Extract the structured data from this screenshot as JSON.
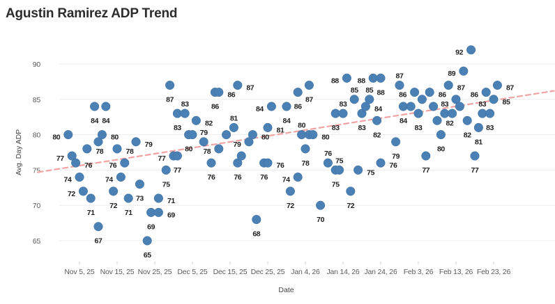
{
  "title": "Agustin Ramirez ADP Trend",
  "colors": {
    "dot": "#4b80b4",
    "dot_stroke": "#3d6f9f",
    "trend_line": "#f1a3a3",
    "grid": "#ededed",
    "tick_text": "#5b5b5b",
    "title_text": "#2c2c2c",
    "label_text": "#1e1e1e",
    "background": "#ffffff"
  },
  "chart_data": {
    "type": "scatter",
    "title": "Agustin Ramirez ADP Trend",
    "xlabel": "Date",
    "ylabel": "Avg. Day ADP",
    "grid": "horizontal",
    "legend_position": "none",
    "y_ticks": [
      65,
      70,
      75,
      80,
      85,
      90
    ],
    "ylim": [
      62.5,
      94
    ],
    "x_tick_labels": [
      "Nov 5, 25",
      "Nov 15, 25",
      "Nov 25, 25",
      "Dec 5, 25",
      "Dec 15, 25",
      "Dec 25, 25",
      "Jan 4, 26",
      "Jan 14, 26",
      "Jan 24, 26",
      "Feb 3, 26",
      "Feb 13, 26",
      "Feb 23, 26"
    ],
    "trend": {
      "style": "dashed",
      "start_date": "Oct 25",
      "start_adp": 74.7,
      "end_date": "Mar 11",
      "end_adp": 86.2
    },
    "points": [
      {
        "date": "Nov 2",
        "adp": 80
      },
      {
        "date": "Nov 3",
        "adp": 77
      },
      {
        "date": "Nov 4",
        "adp": 76
      },
      {
        "date": "Nov 5",
        "adp": 74
      },
      {
        "date": "Nov 6",
        "adp": 72
      },
      {
        "date": "Nov 7",
        "adp": 78
      },
      {
        "date": "Nov 8",
        "adp": 71
      },
      {
        "date": "Nov 9",
        "adp": 84
      },
      {
        "date": "Nov 10",
        "adp": 67
      },
      {
        "date": "Nov 10",
        "adp": 79
      },
      {
        "date": "Nov 11",
        "adp": 80
      },
      {
        "date": "Nov 12",
        "adp": 84
      },
      {
        "date": "Nov 14",
        "adp": 72
      },
      {
        "date": "Nov 15",
        "adp": 78
      },
      {
        "date": "Nov 16",
        "adp": 74
      },
      {
        "date": "Nov 17",
        "adp": 76
      },
      {
        "date": "Nov 18",
        "adp": 71
      },
      {
        "date": "Nov 20",
        "adp": 79
      },
      {
        "date": "Nov 21",
        "adp": 73
      },
      {
        "date": "Nov 23",
        "adp": 65
      },
      {
        "date": "Nov 24",
        "adp": 69
      },
      {
        "date": "Nov 26",
        "adp": 71
      },
      {
        "date": "Nov 26",
        "adp": 69
      },
      {
        "date": "Nov 28",
        "adp": 75
      },
      {
        "date": "Nov 29",
        "adp": 87
      },
      {
        "date": "Nov 30",
        "adp": 77
      },
      {
        "date": "Dec 1",
        "adp": 77
      },
      {
        "date": "Dec 1",
        "adp": 83
      },
      {
        "date": "Dec 3",
        "adp": 83
      },
      {
        "date": "Dec 4",
        "adp": 80
      },
      {
        "date": "Dec 5",
        "adp": 80
      },
      {
        "date": "Dec 6",
        "adp": 82
      },
      {
        "date": "Dec 8",
        "adp": 79
      },
      {
        "date": "Dec 10",
        "adp": 76
      },
      {
        "date": "Dec 11",
        "adp": 86
      },
      {
        "date": "Dec 12",
        "adp": 86
      },
      {
        "date": "Dec 12",
        "adp": 78
      },
      {
        "date": "Dec 14",
        "adp": 80
      },
      {
        "date": "Dec 16",
        "adp": 81
      },
      {
        "date": "Dec 17",
        "adp": 87
      },
      {
        "date": "Dec 17",
        "adp": 76
      },
      {
        "date": "Dec 18",
        "adp": 77
      },
      {
        "date": "Dec 20",
        "adp": 79
      },
      {
        "date": "Dec 21",
        "adp": 80
      },
      {
        "date": "Dec 22",
        "adp": 68
      },
      {
        "date": "Dec 24",
        "adp": 76
      },
      {
        "date": "Dec 25",
        "adp": 81
      },
      {
        "date": "Dec 25",
        "adp": 76
      },
      {
        "date": "Dec 26",
        "adp": 84
      },
      {
        "date": "Dec 30",
        "adp": 84
      },
      {
        "date": "Dec 31",
        "adp": 72
      },
      {
        "date": "Jan 2",
        "adp": 74
      },
      {
        "date": "Jan 2",
        "adp": 86
      },
      {
        "date": "Jan 3",
        "adp": 80
      },
      {
        "date": "Jan 4",
        "adp": 78
      },
      {
        "date": "Jan 5",
        "adp": 87
      },
      {
        "date": "Jan 5",
        "adp": 80
      },
      {
        "date": "Jan 6",
        "adp": 80
      },
      {
        "date": "Jan 8",
        "adp": 70
      },
      {
        "date": "Jan 10",
        "adp": 76
      },
      {
        "date": "Jan 12",
        "adp": 75
      },
      {
        "date": "Jan 12",
        "adp": 83
      },
      {
        "date": "Jan 13",
        "adp": 75
      },
      {
        "date": "Jan 14",
        "adp": 83
      },
      {
        "date": "Jan 15",
        "adp": 88
      },
      {
        "date": "Jan 16",
        "adp": 72
      },
      {
        "date": "Jan 17",
        "adp": 85
      },
      {
        "date": "Jan 18",
        "adp": 75
      },
      {
        "date": "Jan 19",
        "adp": 83
      },
      {
        "date": "Jan 20",
        "adp": 84
      },
      {
        "date": "Jan 21",
        "adp": 85
      },
      {
        "date": "Jan 22",
        "adp": 88
      },
      {
        "date": "Jan 23",
        "adp": 82
      },
      {
        "date": "Jan 24",
        "adp": 88
      },
      {
        "date": "Jan 24",
        "adp": 76
      },
      {
        "date": "Jan 28",
        "adp": 79
      },
      {
        "date": "Jan 29",
        "adp": 87
      },
      {
        "date": "Jan 30",
        "adp": 84
      },
      {
        "date": "Feb 1",
        "adp": 84
      },
      {
        "date": "Feb 2",
        "adp": 86
      },
      {
        "date": "Feb 3",
        "adp": 83
      },
      {
        "date": "Feb 4",
        "adp": 85
      },
      {
        "date": "Feb 5",
        "adp": 77
      },
      {
        "date": "Feb 6",
        "adp": 86
      },
      {
        "date": "Feb 7",
        "adp": 84
      },
      {
        "date": "Feb 8",
        "adp": 82
      },
      {
        "date": "Feb 9",
        "adp": 80
      },
      {
        "date": "Feb 10",
        "adp": 83
      },
      {
        "date": "Feb 11",
        "adp": 87
      },
      {
        "date": "Feb 12",
        "adp": 83
      },
      {
        "date": "Feb 13",
        "adp": 85
      },
      {
        "date": "Feb 14",
        "adp": 84
      },
      {
        "date": "Feb 15",
        "adp": 89
      },
      {
        "date": "Feb 16",
        "adp": 82
      },
      {
        "date": "Feb 17",
        "adp": 92
      },
      {
        "date": "Feb 18",
        "adp": 77
      },
      {
        "date": "Feb 19",
        "adp": 81
      },
      {
        "date": "Feb 20",
        "adp": 83
      },
      {
        "date": "Feb 21",
        "adp": 86
      },
      {
        "date": "Feb 22",
        "adp": 83
      },
      {
        "date": "Feb 23",
        "adp": 85
      },
      {
        "date": "Feb 24",
        "adp": 87
      }
    ]
  }
}
